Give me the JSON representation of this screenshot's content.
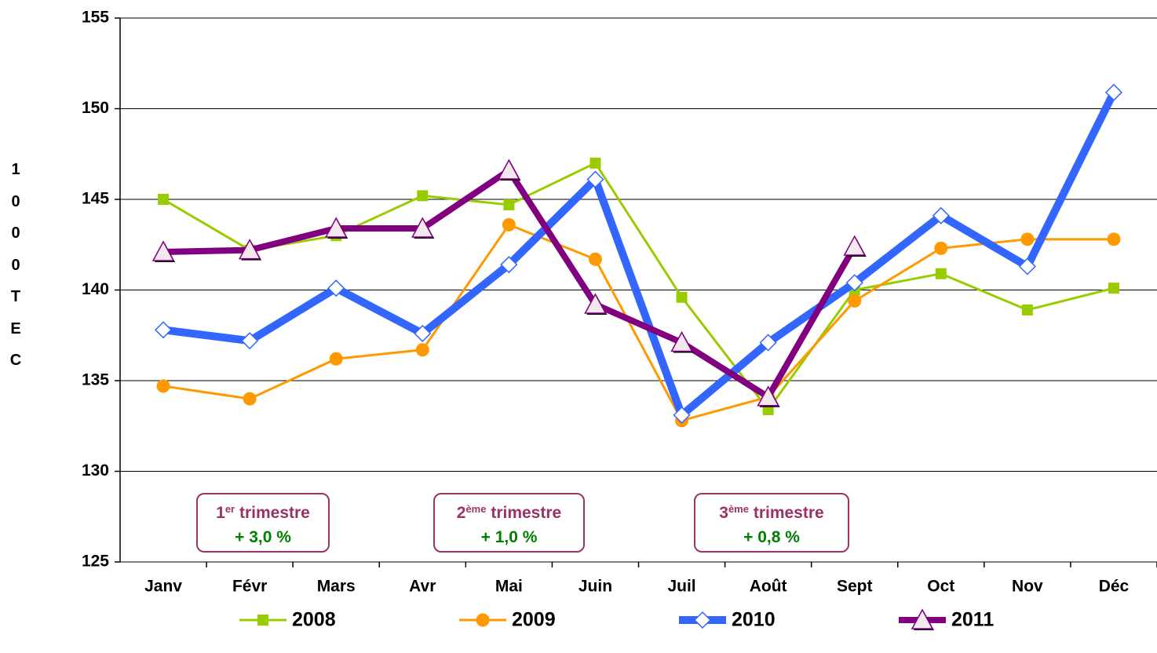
{
  "chart_data": {
    "type": "line",
    "y_label": "1000 TEC",
    "categories": [
      "Janv",
      "Févr",
      "Mars",
      "Avr",
      "Mai",
      "Juin",
      "Juil",
      "Août",
      "Sept",
      "Oct",
      "Nov",
      "Déc"
    ],
    "series": [
      {
        "name": "2008",
        "color": "#99cc00",
        "marker": "square",
        "values": [
          145.0,
          142.2,
          143.0,
          145.2,
          144.7,
          147.0,
          139.6,
          133.4,
          140.0,
          140.9,
          138.9,
          140.1
        ]
      },
      {
        "name": "2009",
        "color": "#ff9900",
        "marker": "circle",
        "values": [
          134.7,
          134.0,
          136.2,
          136.7,
          143.6,
          141.7,
          132.8,
          134.1,
          139.4,
          142.3,
          142.8,
          142.8
        ]
      },
      {
        "name": "2010",
        "color": "#3366ff",
        "marker": "diamond",
        "values": [
          137.8,
          137.2,
          140.1,
          137.6,
          141.4,
          146.1,
          133.1,
          137.1,
          140.4,
          144.1,
          141.3,
          150.9
        ]
      },
      {
        "name": "2011",
        "color": "#800080",
        "marker": "triangle",
        "values": [
          142.1,
          142.2,
          143.4,
          143.4,
          146.6,
          139.2,
          137.1,
          134.1,
          142.4,
          null,
          null,
          null
        ]
      }
    ],
    "annotations": [
      {
        "number": "1",
        "sup": "er",
        "label": "trimestre",
        "change": "+ 3,0 %"
      },
      {
        "number": "2",
        "sup": "ème",
        "label": "trimestre",
        "change": "+ 1,0 %"
      },
      {
        "number": "3",
        "sup": "ème",
        "label": "trimestre",
        "change": "+ 0,8 %"
      }
    ],
    "ylim": [
      125,
      155
    ],
    "yticks": [
      125,
      130,
      135,
      140,
      145,
      150,
      155
    ],
    "grid": true,
    "legend": "bottom"
  }
}
